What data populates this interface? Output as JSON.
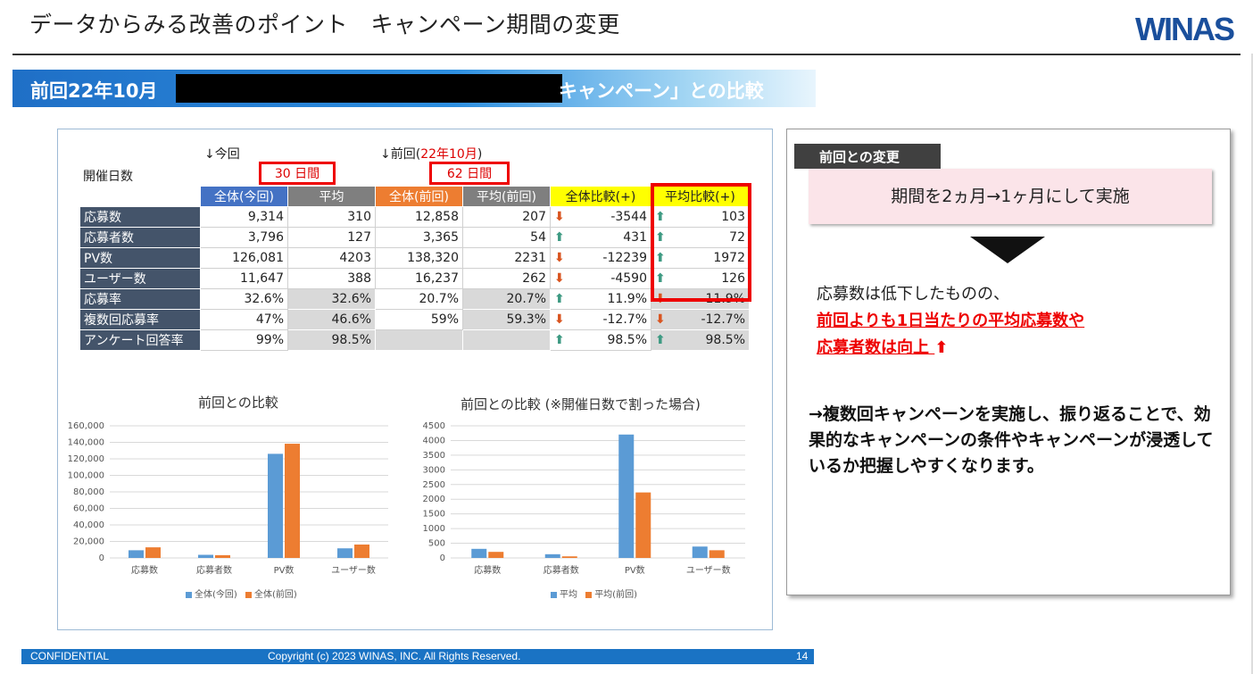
{
  "header": {
    "title": "データからみる改善のポイント　キャンペーン期間の変更",
    "logo": "WINAS"
  },
  "subtitle": {
    "left": "前回22年10月",
    "right": "キャンペーン」との比較"
  },
  "table_section": {
    "current_label": "↓今回",
    "previous_label": "↓前回(",
    "previous_date": "22年10月",
    "previous_close": ")",
    "days_label": "開催日数",
    "current_days": "30 日間",
    "previous_days": "62 日間",
    "columns": [
      "全体(今回)",
      "平均",
      "全体(前回)",
      "平均(前回)",
      "全体比較(+)",
      "平均比較(+)"
    ],
    "column_colors": [
      "#4472c4",
      "#7f7f7f",
      "#ed7d31",
      "#7f7f7f",
      "#ffff00",
      "#ffff00"
    ],
    "rows": [
      {
        "label": "応募数",
        "v": [
          "9,314",
          "310",
          "12,858",
          "207",
          "-3544",
          "103"
        ],
        "a": [
          "down",
          "up"
        ]
      },
      {
        "label": "応募者数",
        "v": [
          "3,796",
          "127",
          "3,365",
          "54",
          "431",
          "72"
        ],
        "a": [
          "up",
          "up"
        ]
      },
      {
        "label": "PV数",
        "v": [
          "126,081",
          "4203",
          "138,320",
          "2231",
          "-12239",
          "1972"
        ],
        "a": [
          "down",
          "up"
        ]
      },
      {
        "label": "ユーザー数",
        "v": [
          "11,647",
          "388",
          "16,237",
          "262",
          "-4590",
          "126"
        ],
        "a": [
          "down",
          "up"
        ]
      },
      {
        "label": "応募率",
        "v": [
          "32.6%",
          "32.6%",
          "20.7%",
          "20.7%",
          "11.9%",
          "11.9%"
        ],
        "a": [
          "up",
          "down"
        ]
      },
      {
        "label": "複数回応募率",
        "v": [
          "47%",
          "46.6%",
          "59%",
          "59.3%",
          "-12.7%",
          "-12.7%"
        ],
        "a": [
          "down",
          "down"
        ]
      },
      {
        "label": "アンケート回答率",
        "v": [
          "99%",
          "98.5%",
          "",
          "",
          "98.5%",
          "98.5%"
        ],
        "a": [
          "up",
          "up"
        ]
      }
    ]
  },
  "chart_data": [
    {
      "type": "bar",
      "title": "前回との比較",
      "categories": [
        "応募数",
        "応募者数",
        "PV数",
        "ユーザー数"
      ],
      "series": [
        {
          "name": "全体(今回)",
          "values": [
            9314,
            3796,
            126081,
            11647
          ],
          "color": "#5b9bd5"
        },
        {
          "name": "全体(前回)",
          "values": [
            12858,
            3365,
            138320,
            16237
          ],
          "color": "#ed7d31"
        }
      ],
      "ylim": [
        0,
        160000
      ],
      "yticks": [
        "0",
        "20,000",
        "40,000",
        "60,000",
        "80,000",
        "100,000",
        "120,000",
        "140,000",
        "160,000"
      ],
      "ytick_values": [
        0,
        20000,
        40000,
        60000,
        80000,
        100000,
        120000,
        140000,
        160000
      ],
      "grid": true,
      "legend": "bottom"
    },
    {
      "type": "bar",
      "title": "前回との比較 (※開催日数で割った場合)",
      "categories": [
        "応募数",
        "応募者数",
        "PV数",
        "ユーザー数"
      ],
      "series": [
        {
          "name": "平均",
          "values": [
            310,
            127,
            4203,
            388
          ],
          "color": "#5b9bd5"
        },
        {
          "name": "平均(前回)",
          "values": [
            207,
            54,
            2231,
            262
          ],
          "color": "#ed7d31"
        }
      ],
      "ylim": [
        0,
        4500
      ],
      "yticks": [
        "0",
        "500",
        "1000",
        "1500",
        "2000",
        "2500",
        "3000",
        "3500",
        "4000",
        "4500"
      ],
      "ytick_values": [
        0,
        500,
        1000,
        1500,
        2000,
        2500,
        3000,
        3500,
        4000,
        4500
      ],
      "grid": true,
      "legend": "bottom"
    }
  ],
  "side": {
    "tag": "前回との変更",
    "change": "期間を2ヵ月→1ヶ月にして実施",
    "result_line1": "応募数は低下したものの、",
    "result_line2": "前回よりも1日当たりの平均応募数や",
    "result_line3": "応募者数は向上",
    "up_arrow": "⬆",
    "conclusion": "→複数回キャンペーンを実施し、振り返ることで、効果的なキャンペーンの条件やキャンペーンが浸透しているか把握しやすくなります。"
  },
  "footer": {
    "confidential": "CONFIDENTIAL",
    "copyright": "Copyright (c) 2023 WINAS, INC. All Rights Reserved.",
    "page": "14"
  }
}
